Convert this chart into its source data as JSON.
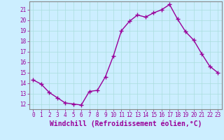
{
  "x": [
    0,
    1,
    2,
    3,
    4,
    5,
    6,
    7,
    8,
    9,
    10,
    11,
    12,
    13,
    14,
    15,
    16,
    17,
    18,
    19,
    20,
    21,
    22,
    23
  ],
  "y": [
    14.3,
    13.9,
    13.1,
    12.6,
    12.1,
    12.0,
    11.9,
    13.2,
    13.3,
    14.6,
    16.6,
    19.0,
    19.9,
    20.5,
    20.3,
    20.7,
    21.0,
    21.5,
    20.1,
    18.9,
    18.1,
    16.8,
    15.6,
    15.0
  ],
  "line_color": "#990099",
  "marker": "+",
  "markersize": 4,
  "linewidth": 1.0,
  "xlabel": "Windchill (Refroidissement éolien,°C)",
  "xlabel_fontsize": 7,
  "ylim": [
    11.5,
    21.8
  ],
  "xlim": [
    -0.5,
    23.5
  ],
  "yticks": [
    12,
    13,
    14,
    15,
    16,
    17,
    18,
    19,
    20,
    21
  ],
  "xticks": [
    0,
    1,
    2,
    3,
    4,
    5,
    6,
    7,
    8,
    9,
    10,
    11,
    12,
    13,
    14,
    15,
    16,
    17,
    18,
    19,
    20,
    21,
    22,
    23
  ],
  "grid_color": "#aadddd",
  "background_color": "#cceeff",
  "tick_label_color": "#990099",
  "tick_label_fontsize": 5.5,
  "xlabel_color": "#990099",
  "spine_color": "#888888"
}
